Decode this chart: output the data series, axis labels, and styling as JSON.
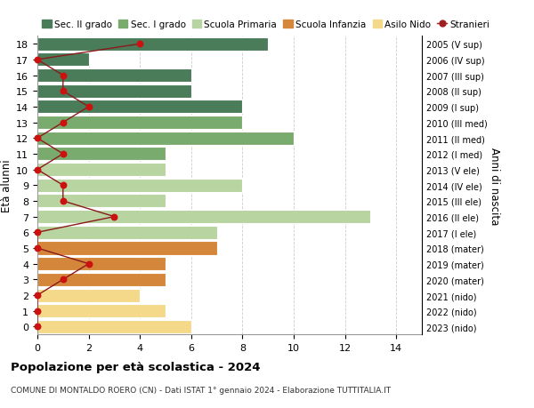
{
  "ages": [
    18,
    17,
    16,
    15,
    14,
    13,
    12,
    11,
    10,
    9,
    8,
    7,
    6,
    5,
    4,
    3,
    2,
    1,
    0
  ],
  "right_labels": [
    "2005 (V sup)",
    "2006 (IV sup)",
    "2007 (III sup)",
    "2008 (II sup)",
    "2009 (I sup)",
    "2010 (III med)",
    "2011 (II med)",
    "2012 (I med)",
    "2013 (V ele)",
    "2014 (IV ele)",
    "2015 (III ele)",
    "2016 (II ele)",
    "2017 (I ele)",
    "2018 (mater)",
    "2019 (mater)",
    "2020 (mater)",
    "2021 (nido)",
    "2022 (nido)",
    "2023 (nido)"
  ],
  "bar_values": [
    9,
    2,
    6,
    6,
    8,
    8,
    10,
    5,
    5,
    8,
    5,
    13,
    7,
    7,
    5,
    5,
    4,
    5,
    6
  ],
  "bar_colors": [
    "#4a7c59",
    "#4a7c59",
    "#4a7c59",
    "#4a7c59",
    "#4a7c59",
    "#7aab6e",
    "#7aab6e",
    "#7aab6e",
    "#b8d4a0",
    "#b8d4a0",
    "#b8d4a0",
    "#b8d4a0",
    "#b8d4a0",
    "#d4873a",
    "#d4873a",
    "#d4873a",
    "#f5d98b",
    "#f5d98b",
    "#f5d98b"
  ],
  "stranieri_values": [
    4,
    0,
    1,
    1,
    2,
    1,
    0,
    1,
    0,
    1,
    1,
    3,
    0,
    0,
    2,
    1,
    0,
    0,
    0
  ],
  "legend_labels": [
    "Sec. II grado",
    "Sec. I grado",
    "Scuola Primaria",
    "Scuola Infanzia",
    "Asilo Nido",
    "Stranieri"
  ],
  "legend_colors": [
    "#4a7c59",
    "#7aab6e",
    "#b8d4a0",
    "#d4873a",
    "#f5d98b",
    "#a02020"
  ],
  "title": "Popolazione per età scolastica - 2024",
  "subtitle": "COMUNE DI MONTALDO ROERO (CN) - Dati ISTAT 1° gennaio 2024 - Elaborazione TUTTITALIA.IT",
  "ylabel_left": "Età alunni",
  "ylabel_right": "Anni di nascita",
  "xlim": [
    0,
    15
  ],
  "xticks": [
    0,
    2,
    4,
    6,
    8,
    10,
    12,
    14
  ],
  "background_color": "#ffffff",
  "grid_color": "#cccccc"
}
